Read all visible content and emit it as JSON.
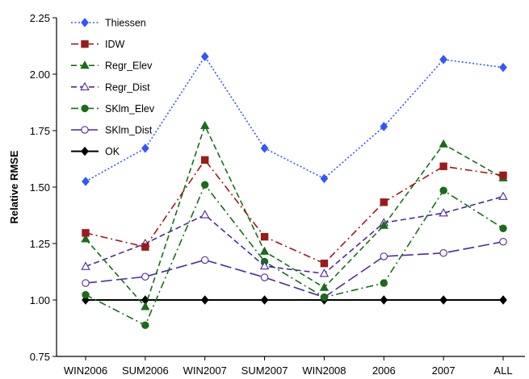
{
  "chart_data": {
    "type": "line",
    "categories": [
      "WIN2006",
      "SUM2006",
      "WIN2007",
      "SUM2007",
      "WIN2008",
      "2006",
      "2007",
      "ALL"
    ],
    "ylabel": "Relative RMSE",
    "xlabel": "",
    "ylim": [
      0.75,
      2.25
    ],
    "yticks": [
      "0.75",
      "1.00",
      "1.25",
      "1.50",
      "1.75",
      "2.00",
      "2.25"
    ],
    "grid": false,
    "legend_position": "top-left",
    "series": [
      {
        "name": "Thiessen",
        "color": "#3355ff",
        "dash": "dotted",
        "marker": "diamond-filled",
        "values": [
          1.525,
          1.672,
          2.078,
          1.672,
          1.538,
          1.768,
          2.065,
          2.03
        ]
      },
      {
        "name": "IDW",
        "color": "#9b1b1b",
        "dash": "dashdot",
        "marker": "square-filled",
        "values": [
          1.297,
          1.235,
          1.62,
          1.28,
          1.162,
          1.433,
          1.592,
          1.552
        ]
      },
      {
        "name": "Regr_Elev",
        "color": "#1a6b1a",
        "dash": "dashed",
        "marker": "triangle-filled",
        "values": [
          1.27,
          0.97,
          1.772,
          1.215,
          1.055,
          1.33,
          1.69,
          1.54
        ]
      },
      {
        "name": "Regr_Dist",
        "color": "#4b2a99",
        "dash": "dashed",
        "marker": "triangle-open",
        "values": [
          1.148,
          1.25,
          1.377,
          1.15,
          1.117,
          1.342,
          1.385,
          1.458
        ]
      },
      {
        "name": "SKlm_Elev",
        "color": "#1a6b1a",
        "dash": "dashdot",
        "marker": "circle-filled",
        "values": [
          1.023,
          0.888,
          1.51,
          1.17,
          1.012,
          1.075,
          1.485,
          1.317
        ]
      },
      {
        "name": "SKlm_Dist",
        "color": "#4b2a99",
        "dash": "longdash",
        "marker": "circle-open",
        "values": [
          1.075,
          1.103,
          1.177,
          1.1,
          1.012,
          1.193,
          1.208,
          1.258
        ]
      },
      {
        "name": "OK",
        "color": "#000000",
        "dash": "solid",
        "marker": "diamond-filled",
        "values": [
          1.0,
          1.0,
          1.0,
          1.0,
          1.0,
          1.0,
          1.0,
          1.0
        ]
      }
    ]
  }
}
